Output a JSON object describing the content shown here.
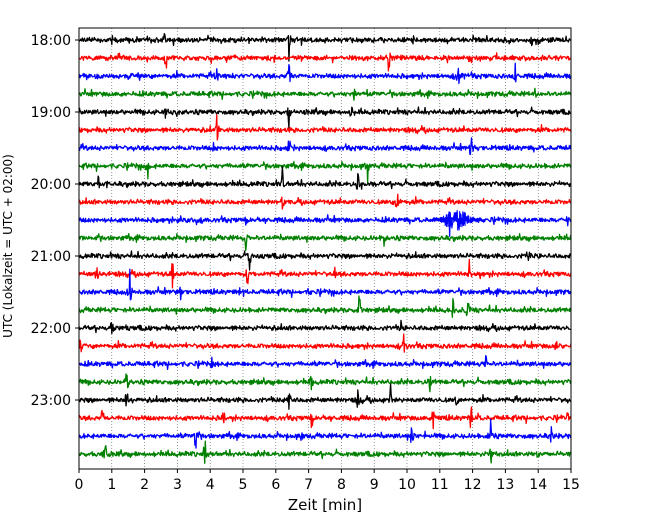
{
  "chart_data": {
    "type": "line",
    "title": "",
    "xlabel": "Zeit  [min]",
    "ylabel": "UTC (Lokalzeit = UTC + 02:00)",
    "xlim": [
      0,
      15
    ],
    "xticks": [
      0,
      1,
      2,
      3,
      4,
      5,
      6,
      7,
      8,
      9,
      10,
      11,
      12,
      13,
      14,
      15
    ],
    "hour_labels": [
      "18:00",
      "19:00",
      "20:00",
      "21:00",
      "22:00",
      "23:00"
    ],
    "grid": "vertical dotted lines at each minute",
    "colors": [
      "#000000",
      "#ff0000",
      "#0000ff",
      "#008000"
    ],
    "trace_interval_min": 15,
    "traces": [
      {
        "start": "18:00",
        "color": "#000000",
        "events": [
          {
            "t": 1.0,
            "a": 0.45
          },
          {
            "t": 2.6,
            "a": 0.3
          },
          {
            "t": 6.4,
            "a": 1.0
          },
          {
            "t": 10.2,
            "a": 0.25
          },
          {
            "t": 13.8,
            "a": 0.3
          }
        ]
      },
      {
        "start": "18:15",
        "color": "#ff0000",
        "events": [
          {
            "t": 2.65,
            "a": 1.0
          },
          {
            "t": 9.45,
            "a": 0.9
          }
        ]
      },
      {
        "start": "18:30",
        "color": "#0000ff",
        "events": [
          {
            "t": 0.5,
            "a": 0.4
          },
          {
            "t": 4.2,
            "a": 0.6
          },
          {
            "t": 6.4,
            "a": 0.9
          },
          {
            "t": 11.55,
            "a": 1.0
          },
          {
            "t": 13.3,
            "a": 0.8
          }
        ]
      },
      {
        "start": "18:45",
        "color": "#008000",
        "events": [
          {
            "t": 8.4,
            "a": 0.5
          },
          {
            "t": 13.9,
            "a": 0.3
          }
        ]
      },
      {
        "start": "19:00",
        "color": "#000000",
        "events": [
          {
            "t": 2.65,
            "a": 0.6
          },
          {
            "t": 6.4,
            "a": 0.9
          },
          {
            "t": 8.3,
            "a": 0.6
          }
        ]
      },
      {
        "start": "19:15",
        "color": "#ff0000",
        "events": [
          {
            "t": 4.2,
            "a": 1.0
          },
          {
            "t": 3.3,
            "a": 0.3
          }
        ]
      },
      {
        "start": "19:30",
        "color": "#0000ff",
        "events": [
          {
            "t": 4.1,
            "a": 0.3
          },
          {
            "t": 6.4,
            "a": 0.9
          },
          {
            "t": 11.95,
            "a": 0.9
          }
        ]
      },
      {
        "start": "19:45",
        "color": "#008000",
        "events": [
          {
            "t": 2.1,
            "a": 0.7
          },
          {
            "t": 8.8,
            "a": 0.7
          }
        ]
      },
      {
        "start": "20:00",
        "color": "#000000",
        "events": [
          {
            "t": 0.6,
            "a": 0.7
          },
          {
            "t": 6.2,
            "a": 1.0
          },
          {
            "t": 8.5,
            "a": 1.0
          }
        ]
      },
      {
        "start": "20:15",
        "color": "#ff0000",
        "events": [
          {
            "t": 6.2,
            "a": 0.5
          },
          {
            "t": 9.7,
            "a": 0.8
          }
        ]
      },
      {
        "start": "20:30",
        "color": "#0000ff",
        "events": [
          {
            "t": 3.1,
            "a": 0.3
          },
          {
            "t": 5.1,
            "a": 0.4
          },
          {
            "t": 11.3,
            "a": 0.7
          },
          {
            "t": 14.9,
            "a": 0.4
          }
        ]
      },
      {
        "start": "20:45",
        "color": "#008000",
        "events": [
          {
            "t": 5.1,
            "a": 1.0
          },
          {
            "t": 9.3,
            "a": 0.35
          }
        ]
      },
      {
        "start": "21:00",
        "color": "#000000",
        "events": [
          {
            "t": 5.2,
            "a": 1.0
          },
          {
            "t": 13.7,
            "a": 0.6
          }
        ]
      },
      {
        "start": "21:15",
        "color": "#ff0000",
        "events": [
          {
            "t": 0.55,
            "a": 0.6
          },
          {
            "t": 2.85,
            "a": 1.0
          },
          {
            "t": 5.15,
            "a": 1.0
          },
          {
            "t": 7.8,
            "a": 0.4
          },
          {
            "t": 11.9,
            "a": 0.6
          }
        ]
      },
      {
        "start": "21:30",
        "color": "#0000ff",
        "events": [
          {
            "t": 1.55,
            "a": 1.0
          },
          {
            "t": 3.1,
            "a": 0.4
          },
          {
            "t": 4.9,
            "a": 0.5
          },
          {
            "t": 7.0,
            "a": 0.3
          }
        ]
      },
      {
        "start": "21:45",
        "color": "#008000",
        "events": [
          {
            "t": 8.55,
            "a": 1.0
          },
          {
            "t": 11.4,
            "a": 0.5
          },
          {
            "t": 11.85,
            "a": 0.8
          }
        ]
      },
      {
        "start": "22:00",
        "color": "#000000",
        "events": [
          {
            "t": 1.0,
            "a": 0.7
          },
          {
            "t": 9.8,
            "a": 0.6
          }
        ]
      },
      {
        "start": "22:15",
        "color": "#ff0000",
        "events": [
          {
            "t": 0.05,
            "a": 0.5
          },
          {
            "t": 9.9,
            "a": 0.6
          },
          {
            "t": 14.55,
            "a": 0.4
          }
        ]
      },
      {
        "start": "22:30",
        "color": "#0000ff",
        "events": [
          {
            "t": 4.05,
            "a": 0.5
          },
          {
            "t": 12.4,
            "a": 0.6
          }
        ]
      },
      {
        "start": "22:45",
        "color": "#008000",
        "events": [
          {
            "t": 1.45,
            "a": 0.8
          },
          {
            "t": 7.1,
            "a": 0.8
          },
          {
            "t": 10.7,
            "a": 0.6
          }
        ]
      },
      {
        "start": "23:00",
        "color": "#000000",
        "events": [
          {
            "t": 1.45,
            "a": 1.0
          },
          {
            "t": 6.4,
            "a": 0.9
          },
          {
            "t": 8.5,
            "a": 0.6
          },
          {
            "t": 9.5,
            "a": 0.8
          },
          {
            "t": 11.5,
            "a": 0.4
          }
        ]
      },
      {
        "start": "23:15",
        "color": "#ff0000",
        "events": [
          {
            "t": 0.7,
            "a": 0.5
          },
          {
            "t": 4.4,
            "a": 0.4
          },
          {
            "t": 7.1,
            "a": 0.8
          },
          {
            "t": 10.8,
            "a": 0.6
          },
          {
            "t": 11.95,
            "a": 1.0
          },
          {
            "t": 14.9,
            "a": 0.6
          }
        ]
      },
      {
        "start": "23:30",
        "color": "#0000ff",
        "events": [
          {
            "t": 3.55,
            "a": 1.0
          },
          {
            "t": 6.8,
            "a": 0.4
          },
          {
            "t": 10.15,
            "a": 0.9
          },
          {
            "t": 12.55,
            "a": 0.8
          },
          {
            "t": 14.4,
            "a": 0.6
          }
        ]
      },
      {
        "start": "23:45",
        "color": "#008000",
        "events": [
          {
            "t": 0.8,
            "a": 1.0
          },
          {
            "t": 3.85,
            "a": 0.9
          },
          {
            "t": 12.55,
            "a": 0.9
          },
          {
            "t": 14.0,
            "a": 0.3
          }
        ]
      }
    ]
  }
}
